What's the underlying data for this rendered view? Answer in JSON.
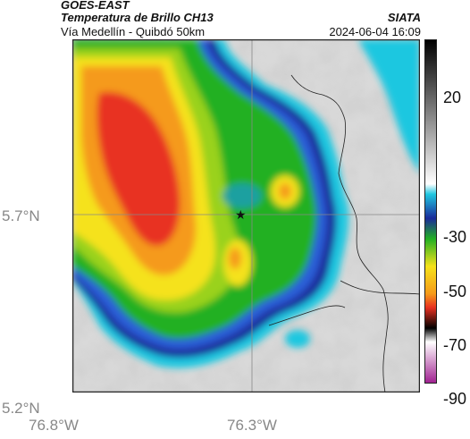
{
  "header": {
    "satellite": "GOES-EAST",
    "product": "Temperatura de Brillo CH13",
    "region": "Vía Medellín - Quibdó 50km",
    "organization": "SIATA",
    "timestamp": "2024-06-04 16:09"
  },
  "axes": {
    "lat_labels": [
      "5.7°N",
      "5.2°N"
    ],
    "lon_labels": [
      "76.8°W",
      "76.3°W"
    ]
  },
  "colorbar": {
    "ticks": [
      "20",
      "-30",
      "-50",
      "-70",
      "-90"
    ]
  },
  "marker": {
    "icon": "star-icon"
  },
  "colors": {
    "frame": "#222222",
    "grid": "#888888",
    "border_line": "#222222"
  }
}
